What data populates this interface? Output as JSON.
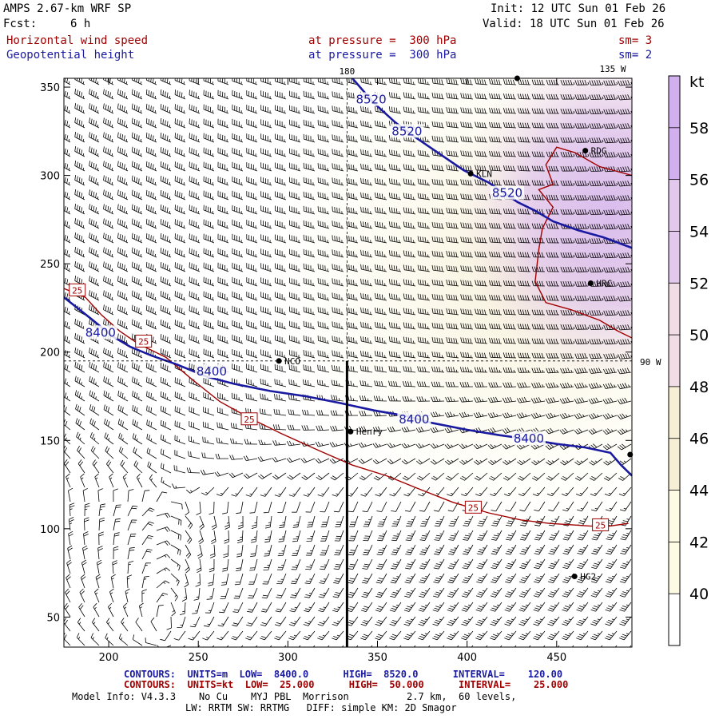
{
  "header": {
    "model": "AMPS 2.67-km WRF SP",
    "fcst_label": "Fcst:",
    "fcst_value": "6 h",
    "init": "Init: 12 UTC Sun 01 Feb 26",
    "valid": "Valid: 18 UTC Sun 01 Feb 26",
    "field1_name": "Horizontal wind speed",
    "field1_level": "at pressure =  300 hPa",
    "field1_sm": "sm= 3",
    "field2_name": "Geopotential height",
    "field2_level": "at pressure =  300 hPa",
    "field2_sm": "sm= 2"
  },
  "colors": {
    "height_contour": "#1a1aa0",
    "speed_contour": "#a00000",
    "shade_40": "#fdfbe4",
    "shade_44": "#f6efd6",
    "shade_48": "#f0dde6",
    "shade_52": "#e2c8ec",
    "shade_56": "#d2b0f0"
  },
  "chart_data": {
    "type": "contour",
    "x_ticks": [
      200,
      250,
      300,
      350,
      400,
      450
    ],
    "y_ticks": [
      50,
      100,
      150,
      200,
      250,
      300,
      350
    ],
    "xlim": [
      175,
      492
    ],
    "ylim": [
      33,
      355
    ],
    "meridian_labels": {
      "top_180": "180",
      "top_135w": "135 W",
      "right_90w": "90 W"
    },
    "colorbar": {
      "unit": "kt",
      "ticks": [
        40,
        42,
        44,
        46,
        48,
        50,
        52,
        54,
        56,
        58
      ]
    },
    "height_contours": [
      {
        "label": "8520",
        "points": [
          [
            336,
            355
          ],
          [
            348,
            341
          ],
          [
            360,
            330
          ],
          [
            372,
            321
          ],
          [
            385,
            312
          ],
          [
            398,
            303
          ],
          [
            412,
            296
          ],
          [
            428,
            285
          ],
          [
            438,
            280
          ],
          [
            448,
            274
          ],
          [
            462,
            269
          ],
          [
            476,
            265
          ],
          [
            492,
            259
          ]
        ],
        "labels_at": [
          [
            346,
            343
          ],
          [
            366,
            325
          ],
          [
            422,
            290
          ]
        ]
      },
      {
        "label": "8400",
        "points": [
          [
            175,
            231
          ],
          [
            190,
            219
          ],
          [
            202,
            209
          ],
          [
            212,
            203
          ],
          [
            224,
            198
          ],
          [
            238,
            193
          ],
          [
            255,
            186
          ],
          [
            270,
            182
          ],
          [
            290,
            178
          ],
          [
            310,
            175
          ],
          [
            330,
            171
          ],
          [
            348,
            167
          ],
          [
            365,
            164
          ],
          [
            380,
            160
          ],
          [
            400,
            156
          ],
          [
            418,
            153
          ],
          [
            432,
            151
          ],
          [
            450,
            148
          ],
          [
            466,
            146
          ],
          [
            480,
            143
          ],
          [
            486,
            136
          ],
          [
            492,
            130
          ]
        ],
        "labels_at": [
          [
            195,
            211
          ],
          [
            257,
            189
          ],
          [
            370,
            162
          ],
          [
            434,
            151
          ]
        ]
      }
    ],
    "speed_contours": [
      {
        "label": "25",
        "points": [
          [
            175,
            236
          ],
          [
            187,
            231
          ],
          [
            196,
            221
          ],
          [
            206,
            212
          ],
          [
            216,
            205
          ],
          [
            232,
            197
          ],
          [
            246,
            185
          ],
          [
            262,
            172
          ],
          [
            278,
            163
          ],
          [
            296,
            154
          ],
          [
            318,
            144
          ],
          [
            336,
            136
          ],
          [
            355,
            130
          ],
          [
            372,
            123
          ],
          [
            392,
            115
          ],
          [
            412,
            109
          ],
          [
            430,
            105
          ],
          [
            446,
            103
          ],
          [
            462,
            102
          ],
          [
            476,
            101
          ],
          [
            490,
            103
          ]
        ],
        "labels_at": [
          [
            182,
            235
          ],
          [
            219,
            206
          ],
          [
            278,
            162
          ],
          [
            403,
            112
          ],
          [
            474,
            102
          ]
        ]
      },
      {
        "label": "50",
        "points": [
          [
            492,
            300
          ],
          [
            474,
            305
          ],
          [
            460,
            313
          ],
          [
            450,
            316
          ],
          [
            444,
            306
          ],
          [
            448,
            295
          ],
          [
            440,
            292
          ],
          [
            448,
            282
          ],
          [
            442,
            270
          ],
          [
            440,
            258
          ],
          [
            438,
            240
          ],
          [
            444,
            228
          ],
          [
            458,
            224
          ],
          [
            474,
            218
          ],
          [
            484,
            212
          ],
          [
            492,
            208
          ]
        ]
      }
    ],
    "wind_speed_field_kt": {
      "min": 40,
      "max": 56,
      "core_location": [
        470,
        270
      ]
    },
    "stations": [
      {
        "name": "RDG",
        "x": 466,
        "y": 314
      },
      {
        "name": "KLN",
        "x": 402,
        "y": 301
      },
      {
        "name": "HRC",
        "x": 469,
        "y": 239
      },
      {
        "name": "NCO",
        "x": 295,
        "y": 195
      },
      {
        "name": "Henry",
        "x": 335,
        "y": 155
      },
      {
        "name": "HG2",
        "x": 460,
        "y": 73
      },
      {
        "name": "",
        "x": 428,
        "y": 355
      },
      {
        "name": "",
        "x": 491,
        "y": 142
      }
    ],
    "cross_section": {
      "x": 333,
      "y0": 33,
      "y1": 195
    },
    "meridians": {
      "x_180": 333,
      "y_90w": 195
    }
  },
  "footer": {
    "contours1": "CONTOURS:  UNITS=m  LOW=  8400.0      HIGH=  8520.0      INTERVAL=    120.00",
    "contours2": "CONTOURS:  UNITS=kt  LOW=  25.000      HIGH=  50.000      INTERVAL=    25.000",
    "model_info": "Model Info: V4.3.3    No Cu    MYJ PBL  Morrison          2.7 km,  60 levels,",
    "physics": "LW: RRTM SW: RRTMG   DIFF: simple KM: 2D Smagor"
  }
}
